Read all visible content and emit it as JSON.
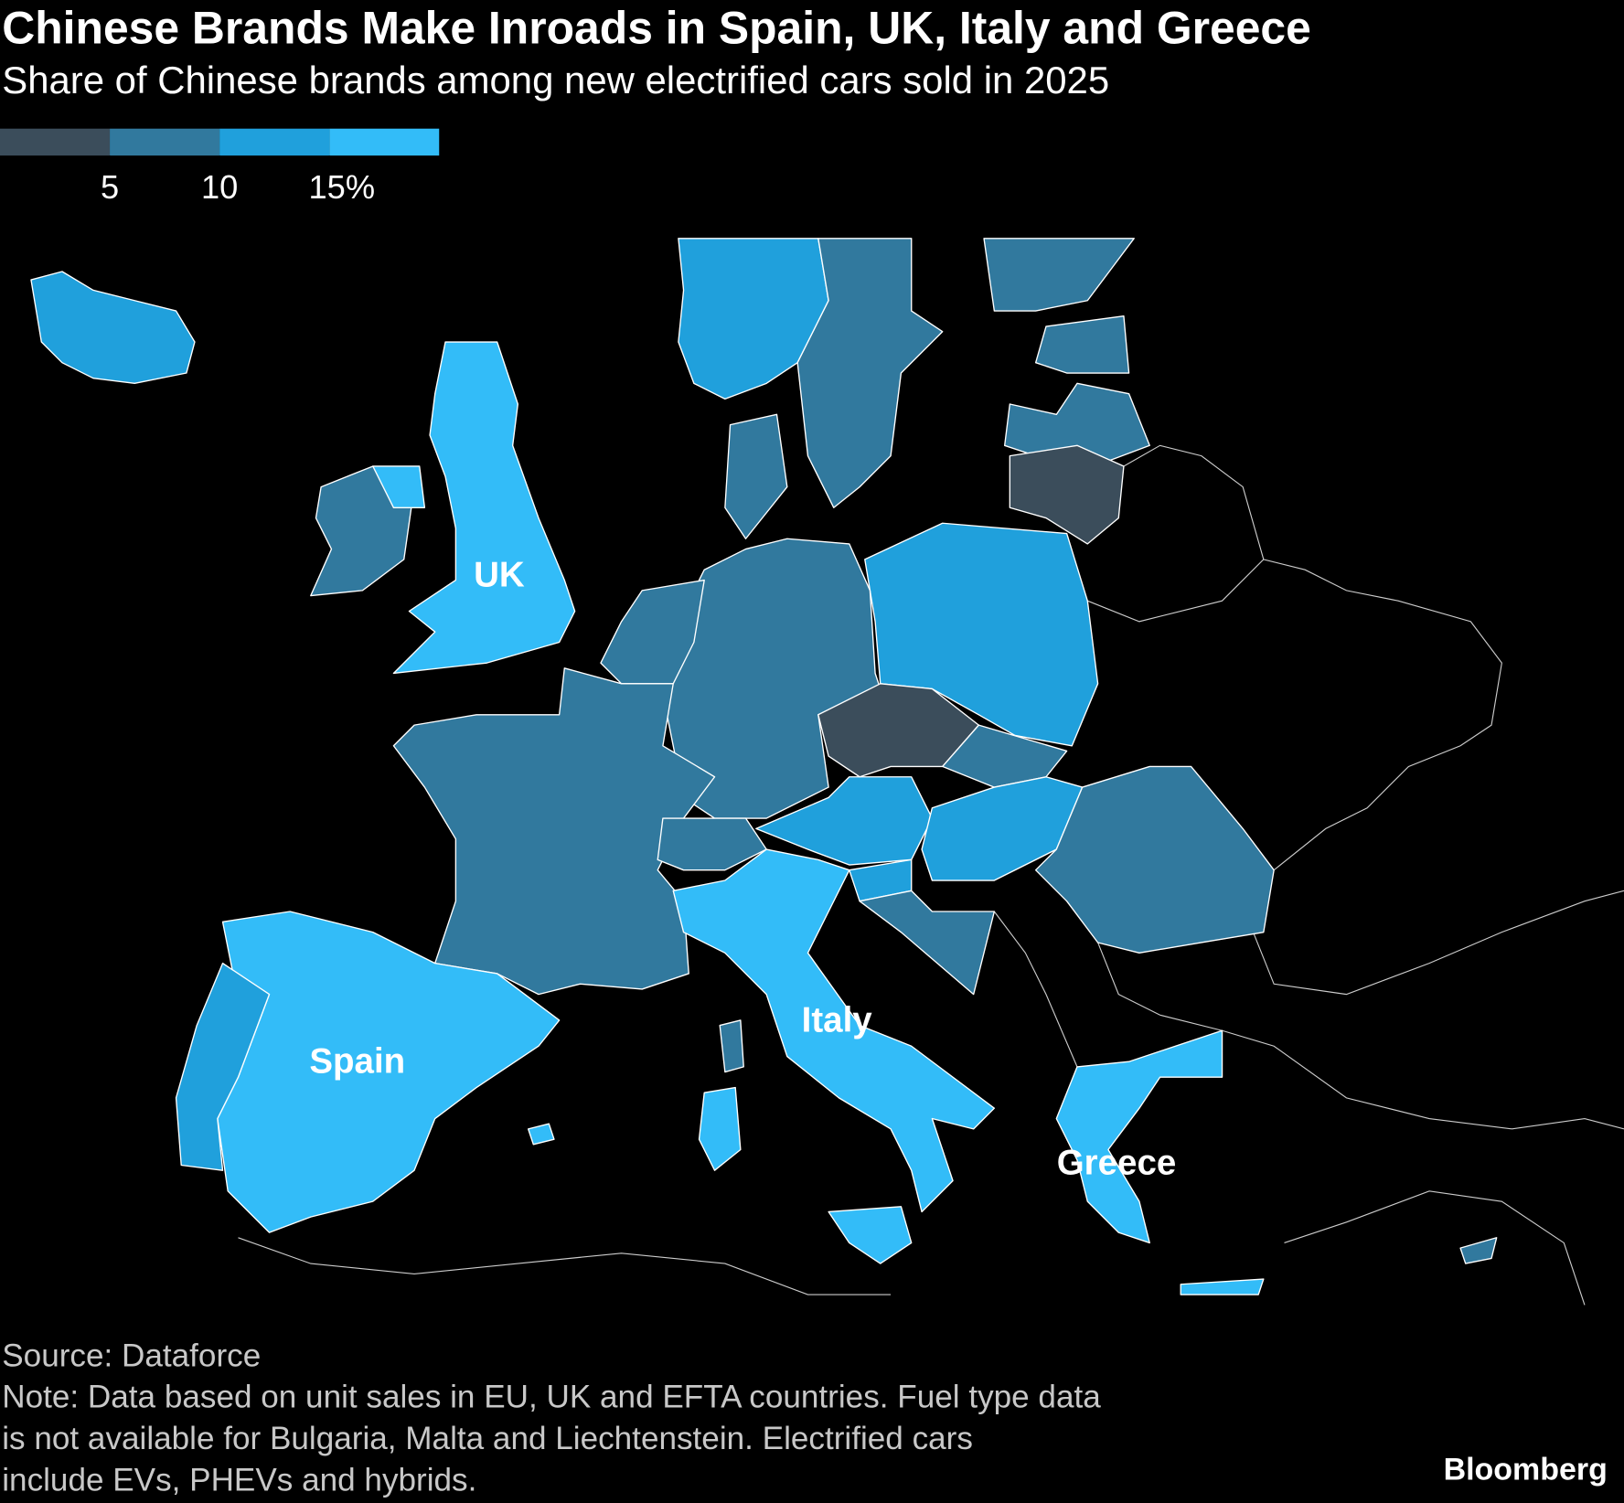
{
  "header": {
    "title": "Chinese Brands Make Inroads in Spain, UK, Italy and Greece",
    "subtitle": "Share of Chinese brands among new electrified cars sold in 2025"
  },
  "legend": {
    "colors": [
      "#3b4d5b",
      "#31799e",
      "#20a0dc",
      "#33bcf8"
    ],
    "ticks": [
      5,
      10,
      {
        "value": 15,
        "label": "15%"
      }
    ]
  },
  "labels": [
    "UK",
    "Spain",
    "Italy",
    "Greece"
  ],
  "footer": {
    "source": "Source: Dataforce",
    "note": [
      "Note: Data based on unit sales in EU, UK and EFTA countries. Fuel type data",
      "is not available for Bulgaria, Malta and Liechtenstein. Electrified cars",
      "include EVs, PHEVs and hybrids."
    ],
    "brand": "Bloomberg"
  }
}
